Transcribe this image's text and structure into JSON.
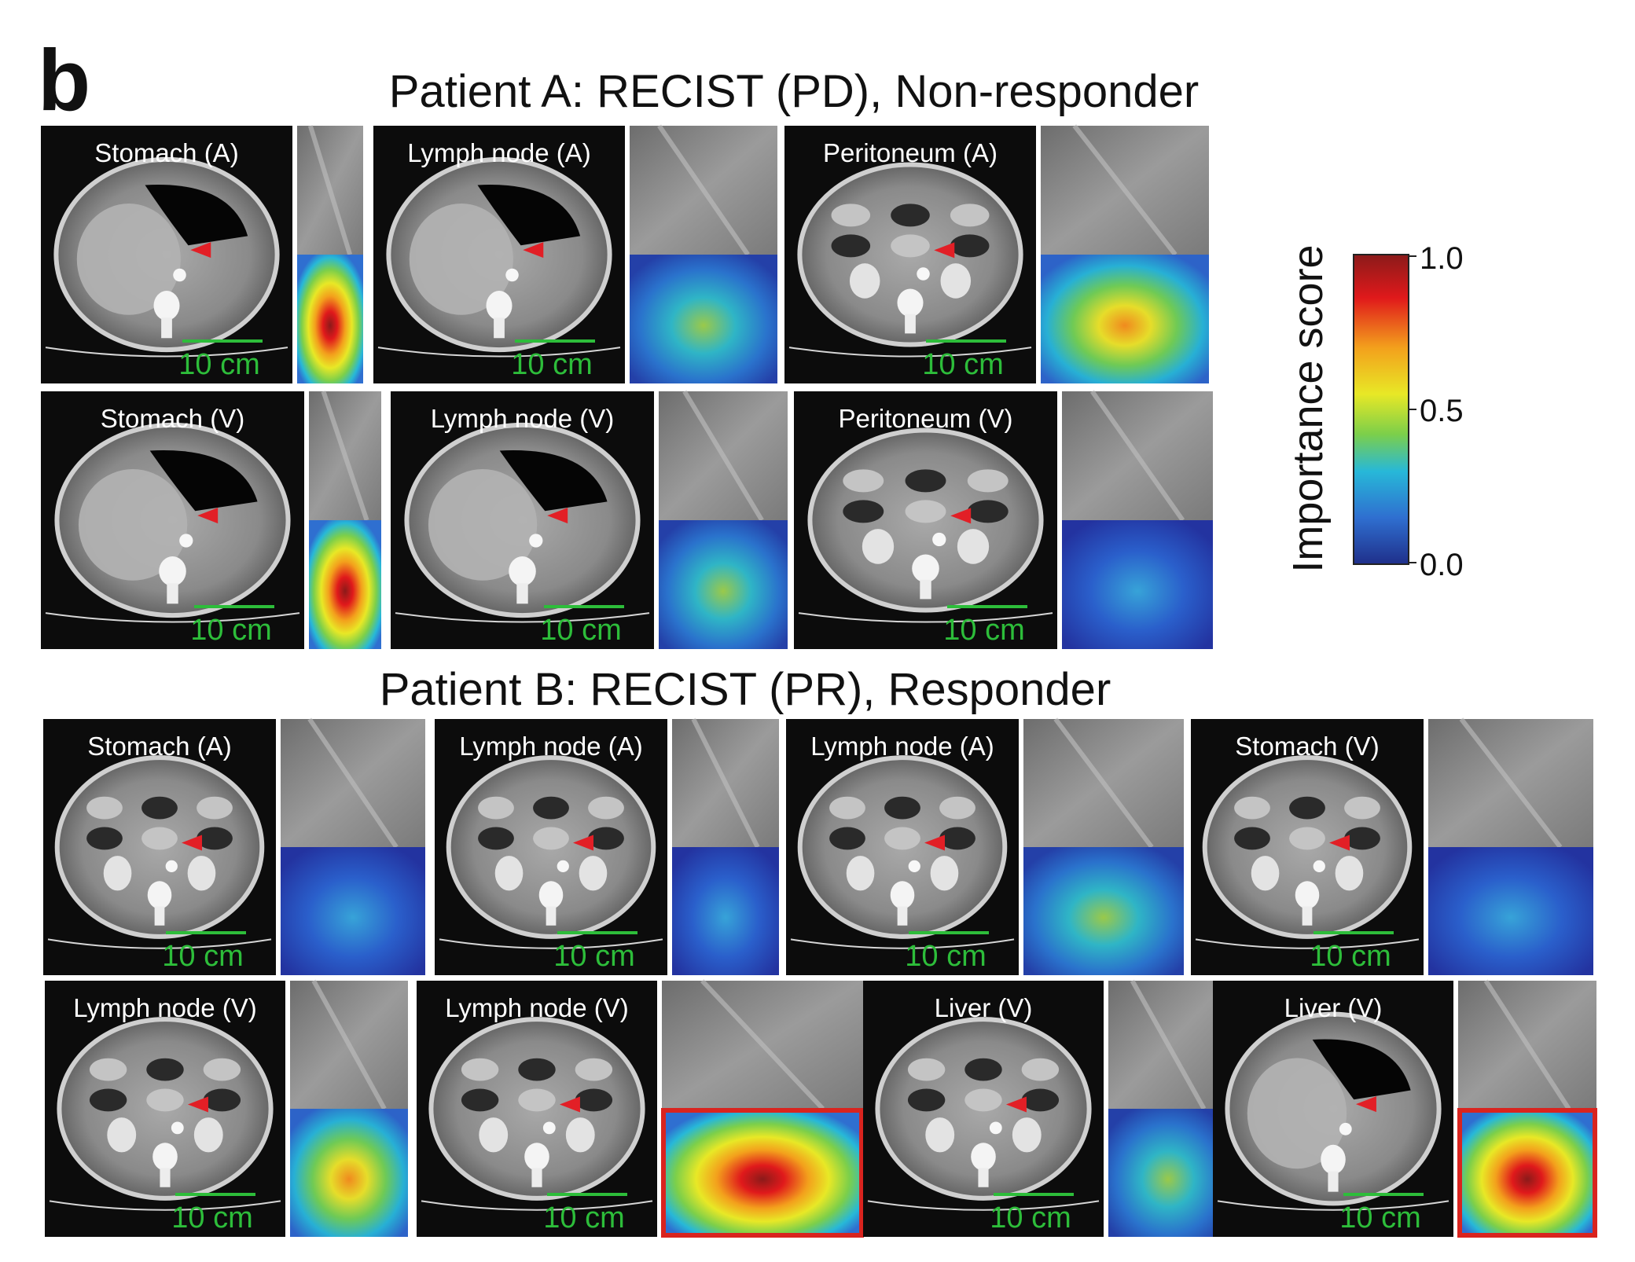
{
  "panel_letter": "b",
  "patient_a": {
    "title": "Patient A: RECIST (PD), Non-responder",
    "row1": [
      {
        "label": "Stomach (A)",
        "scale": "10 cm"
      },
      {
        "label": "Lymph node (A)",
        "scale": "10 cm"
      },
      {
        "label": "Peritoneum (A)",
        "scale": "10 cm"
      }
    ],
    "row2": [
      {
        "label": "Stomach (V)",
        "scale": "10 cm"
      },
      {
        "label": "Lymph node (V)",
        "scale": "10 cm"
      },
      {
        "label": "Peritoneum (V)",
        "scale": "10 cm"
      }
    ]
  },
  "patient_b": {
    "title": "Patient B: RECIST (PR), Responder",
    "row1": [
      {
        "label": "Stomach (A)",
        "scale": "10 cm"
      },
      {
        "label": "Lymph node (A)",
        "scale": "10 cm"
      },
      {
        "label": "Lymph node (A)",
        "scale": "10 cm"
      },
      {
        "label": "Stomach (V)",
        "scale": "10 cm"
      }
    ],
    "row2": [
      {
        "label": "Lymph node (V)",
        "scale": "10 cm"
      },
      {
        "label": "Lymph node (V)",
        "scale": "10 cm"
      },
      {
        "label": "Liver (V)",
        "scale": "10 cm"
      },
      {
        "label": "Liver (V)",
        "scale": "10 cm"
      }
    ]
  },
  "colorbar": {
    "title": "Importance score",
    "ticks": [
      "1.0",
      "0.5",
      "0.0"
    ],
    "colors": [
      "#8b1a1a",
      "#e0191b",
      "#f3a01c",
      "#e8e826",
      "#7ccf4a",
      "#27b8d8",
      "#2f6fd0",
      "#1f2f8a"
    ]
  },
  "colors": {
    "scalebar": "#2dbd3a",
    "arrow": "#e21f26",
    "highlight_box": "#d9241f"
  }
}
